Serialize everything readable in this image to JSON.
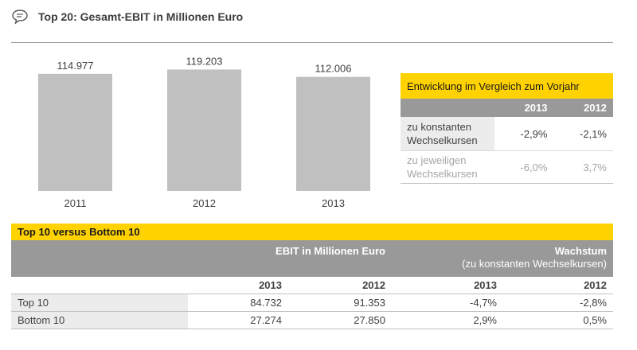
{
  "header": {
    "title": "Top 20: Gesamt-EBIT in Millionen Euro",
    "icon": "speech-bubble-icon"
  },
  "chart_data": {
    "type": "bar",
    "categories": [
      "2011",
      "2012",
      "2013"
    ],
    "values": [
      114977,
      119203,
      112006
    ],
    "value_labels": [
      "114.977",
      "119.203",
      "112.006"
    ],
    "title": "Top 20: Gesamt-EBIT in Millionen Euro",
    "xlabel": "",
    "ylabel": "",
    "ylim": [
      0,
      125000
    ],
    "grid": false,
    "bar_color": "#c0c0c0"
  },
  "comparison": {
    "title": "Entwicklung im Vergleich zum Vorjahr",
    "columns": [
      "2013",
      "2012"
    ],
    "rows": [
      {
        "label": "zu konstanten Wechselkursen",
        "values": [
          "-2,9%",
          "-2,1%"
        ]
      },
      {
        "label": "zu jeweiligen Wechselkursen",
        "values": [
          "-6,0%",
          "3,7%"
        ]
      }
    ]
  },
  "top10": {
    "title": "Top 10 versus Bottom 10",
    "group1": "EBIT in Millionen Euro",
    "group2": "Wachstum",
    "group2_sub": "(zu konstanten Wechselkursen)",
    "years": [
      "2013",
      "2012",
      "2013",
      "2012"
    ],
    "rows": [
      {
        "label": "Top 10",
        "values": [
          "84.732",
          "91.353",
          "-4,7%",
          "-2,8%"
        ]
      },
      {
        "label": "Bottom 10",
        "values": [
          "27.274",
          "27.850",
          "2,9%",
          "0,5%"
        ]
      }
    ]
  },
  "colors": {
    "accent": "#ffd200",
    "header_gray": "#999999",
    "bar": "#c0c0c0",
    "label_bg": "#ececec"
  }
}
